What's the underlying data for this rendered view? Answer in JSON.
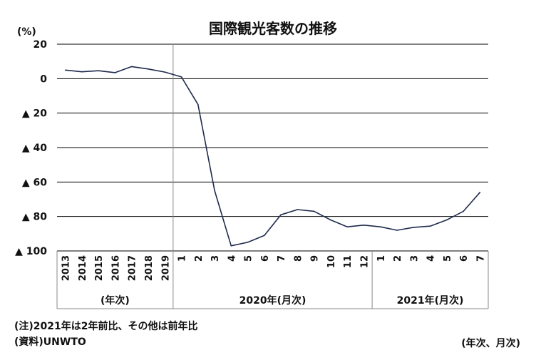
{
  "chart_data": {
    "type": "line",
    "title": "国際観光客数の推移",
    "y_unit_label": "(%)",
    "ylim": [
      -100,
      20
    ],
    "y_ticks": [
      {
        "value": 20,
        "label": "20"
      },
      {
        "value": 0,
        "label": "0"
      },
      {
        "value": -20,
        "label": "▲ 20"
      },
      {
        "value": -40,
        "label": "▲ 40"
      },
      {
        "value": -60,
        "label": "▲ 60"
      },
      {
        "value": -80,
        "label": "▲ 80"
      },
      {
        "value": -100,
        "label": "▲ 100"
      }
    ],
    "grid": true,
    "categories": [
      "2013",
      "2014",
      "2015",
      "2016",
      "2017",
      "2018",
      "2019",
      "1",
      "2",
      "3",
      "4",
      "5",
      "6",
      "7",
      "8",
      "9",
      "10",
      "11",
      "12",
      "1",
      "2",
      "3",
      "4",
      "5",
      "6",
      "7"
    ],
    "series": [
      {
        "values": [
          5,
          4,
          4.6,
          3.5,
          7,
          5.6,
          3.8,
          1,
          -15,
          -65,
          -97,
          -95,
          -91,
          -79,
          -76,
          -77,
          -82,
          -86,
          -85,
          -86,
          -88,
          -86.3,
          -85.6,
          -82,
          -77,
          -66
        ]
      }
    ],
    "groups": [
      {
        "label": "(年次)",
        "count": 7
      },
      {
        "label": "2020年(月次)",
        "count": 12
      },
      {
        "label": "2021年(月次)",
        "count": 7
      }
    ]
  },
  "notes": {
    "note1": "(注)2021年は2年前比、その他は前年比",
    "source": "(資料)UNWTO",
    "unit_right": "(年次、月次)"
  },
  "colors": {
    "line": "#1f2b4d",
    "grid": "#000000",
    "border": "#8a8a8a"
  }
}
